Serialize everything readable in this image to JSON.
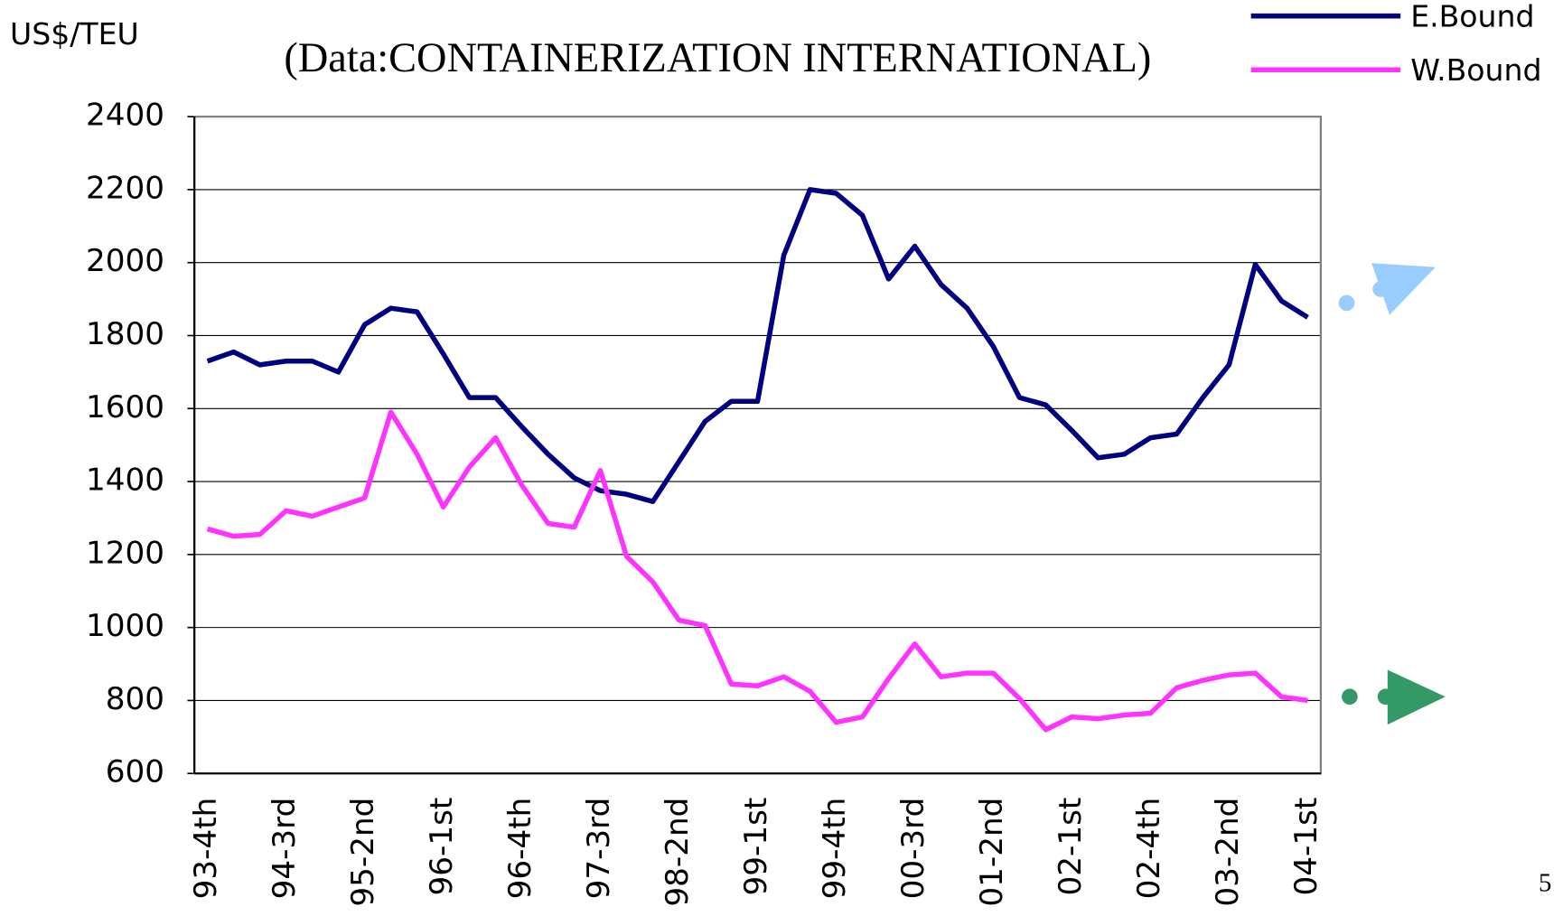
{
  "chart_data": {
    "type": "line",
    "subtitle": "(Data:CONTAINERIZATION INTERNATIONAL)",
    "y_label": "US$/TEU",
    "page_number": "5",
    "categories": [
      "93-4th",
      null,
      null,
      "94-3rd",
      null,
      null,
      "95-2nd",
      null,
      null,
      "96-1st",
      null,
      null,
      "96-4th",
      null,
      null,
      "97-3rd",
      null,
      null,
      "98-2nd",
      null,
      null,
      "99-1st",
      null,
      null,
      "99-4th",
      null,
      null,
      "00-3rd",
      null,
      null,
      "01-2nd",
      null,
      null,
      "02-1st",
      null,
      null,
      "02-4th",
      null,
      null,
      "03-2nd",
      null,
      null,
      "04-1st"
    ],
    "series": [
      {
        "name": "E.Bound",
        "color": "#000080",
        "values": [
          1730,
          1755,
          1720,
          1730,
          1730,
          1700,
          1830,
          1875,
          1865,
          1750,
          1630,
          1630,
          1550,
          1475,
          1410,
          1375,
          1365,
          1345,
          1455,
          1565,
          1620,
          1620,
          2020,
          2200,
          2190,
          2130,
          1955,
          2045,
          1940,
          1875,
          1770,
          1630,
          1610,
          1540,
          1465,
          1475,
          1520,
          1530,
          1630,
          1720,
          1995,
          1895,
          1850
        ]
      },
      {
        "name": "W.Bound",
        "color": "#ff33ff",
        "values": [
          1270,
          1250,
          1255,
          1320,
          1305,
          1330,
          1355,
          1590,
          1475,
          1330,
          1440,
          1520,
          1390,
          1285,
          1275,
          1430,
          1195,
          1125,
          1020,
          1005,
          845,
          840,
          865,
          825,
          740,
          755,
          860,
          955,
          865,
          875,
          875,
          805,
          720,
          755,
          750,
          760,
          765,
          835,
          855,
          870,
          875,
          810,
          800
        ]
      }
    ],
    "ylim": [
      600,
      2400
    ],
    "yticks": [
      600,
      800,
      1000,
      1200,
      1400,
      1600,
      1800,
      2000,
      2200,
      2400
    ],
    "grid": true
  }
}
